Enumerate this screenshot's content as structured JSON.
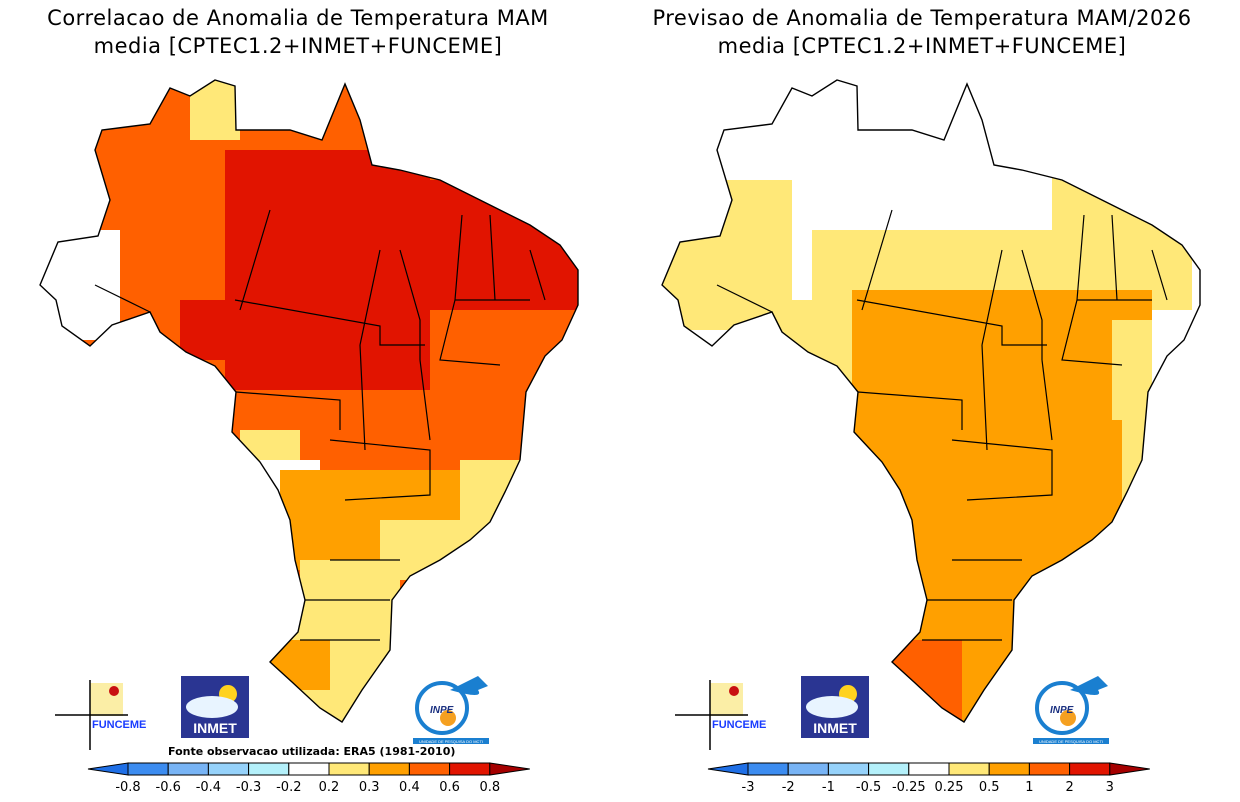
{
  "left_panel": {
    "title_line1": "Correlacao de Anomalia de Temperatura MAM",
    "title_line2": "media [CPTEC1.2+INMET+FUNCEME]",
    "source_note": "Fonte observacao utilizada: ERA5 (1981-2010)",
    "colorbar": {
      "labels": [
        "-0.8",
        "-0.6",
        "-0.4",
        "-0.3",
        "-0.2",
        "0.2",
        "0.3",
        "0.4",
        "0.6",
        "0.8"
      ]
    }
  },
  "right_panel": {
    "title_line1": "Previsao de Anomalia de Temperatura MAM/2026",
    "title_line2": "media [CPTEC1.2+INMET+FUNCEME]",
    "colorbar": {
      "labels": [
        "-3",
        "-2",
        "-1",
        "-0.5",
        "-0.25",
        "0.25",
        "0.5",
        "1",
        "2",
        "3"
      ]
    }
  },
  "colors": {
    "low_end": "#1f6fe6",
    "bins": [
      "#3c8cf0",
      "#78b4f5",
      "#96d2fa",
      "#b4f0fa",
      "#ffffff",
      "#ffe878",
      "#ffa000",
      "#ff6000",
      "#e11400"
    ],
    "high_end": "#a50000"
  },
  "logos": {
    "funceme": "FUNCEME",
    "inmet": "INMET",
    "inpe": "INPE",
    "inpe_sub": "UNIDADE DE PESQUISA DO MCTI"
  }
}
